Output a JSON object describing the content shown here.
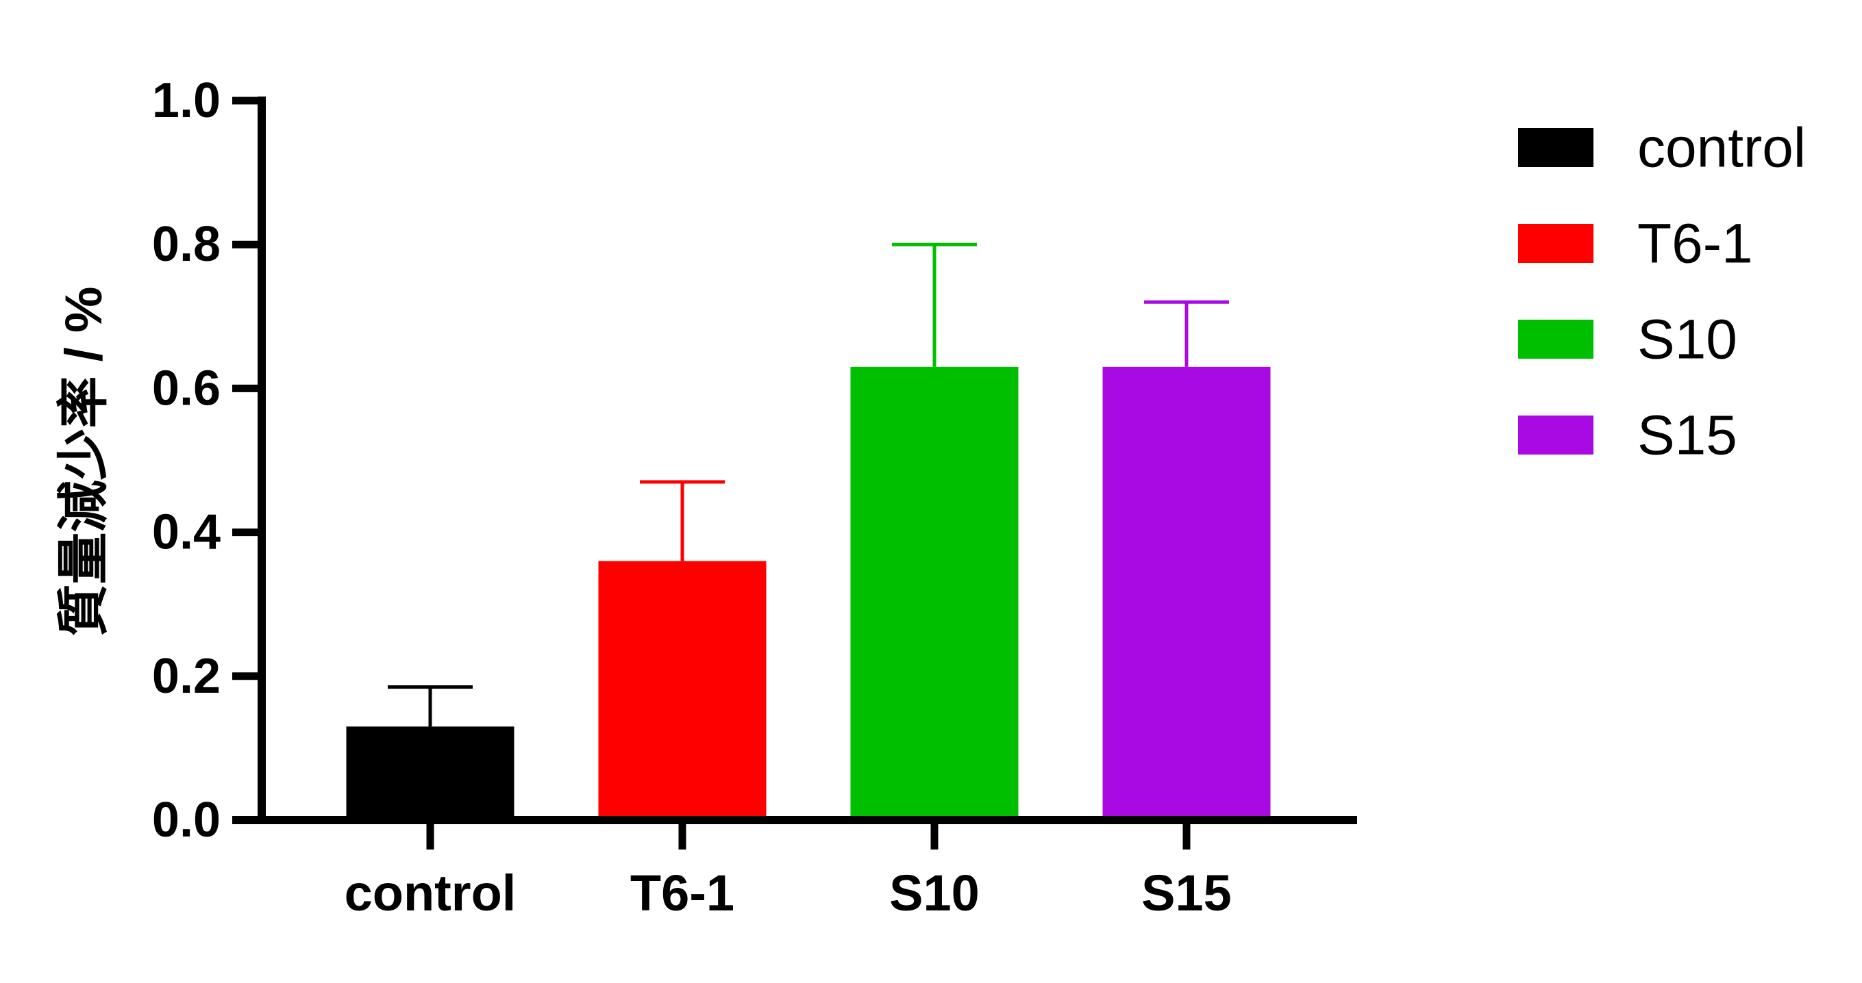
{
  "chart_data": {
    "type": "bar",
    "categories": [
      "control",
      "T6-1",
      "S10",
      "S15"
    ],
    "values": [
      0.13,
      0.36,
      0.63,
      0.63
    ],
    "error_upper": [
      0.055,
      0.11,
      0.17,
      0.09
    ],
    "colors": [
      "#000000",
      "#ff0000",
      "#00bf00",
      "#a90ae3"
    ],
    "ylabel": "質量減少率 / %",
    "ylim": [
      0,
      1.0
    ],
    "yticks": [
      0,
      0.2,
      0.4,
      0.6,
      0.8,
      1.0
    ],
    "ytick_labels": [
      "0.0",
      "0.2",
      "0.4",
      "0.6",
      "0.8",
      "1.0"
    ],
    "grid": false,
    "legend": {
      "position": "right",
      "entries": [
        "control",
        "T6-1",
        "S10",
        "S15"
      ]
    }
  }
}
